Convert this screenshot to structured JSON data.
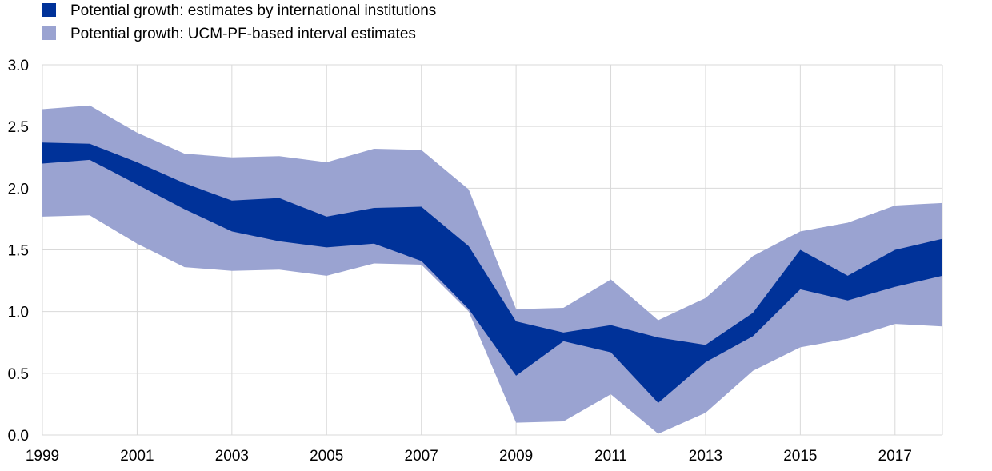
{
  "chart_data": {
    "type": "area",
    "x": [
      1999,
      2000,
      2001,
      2002,
      2003,
      2004,
      2005,
      2006,
      2007,
      2008,
      2009,
      2010,
      2011,
      2012,
      2013,
      2014,
      2015,
      2016,
      2017,
      2018
    ],
    "xticks": [
      "1999",
      "2001",
      "2003",
      "2005",
      "2007",
      "2009",
      "2011",
      "2013",
      "2015",
      "2017"
    ],
    "yticks": [
      "0.0",
      "0.5",
      "1.0",
      "1.5",
      "2.0",
      "2.5",
      "3.0"
    ],
    "ylim": [
      0,
      3
    ],
    "xlim": [
      1999,
      2018
    ],
    "grid": true,
    "legend_position": "top-left",
    "series": [
      {
        "name": "Potential growth: UCM-PF-based interval estimates",
        "color": "#9aa3d1",
        "upper": [
          2.64,
          2.67,
          2.45,
          2.28,
          2.25,
          2.26,
          2.21,
          2.32,
          2.31,
          1.99,
          1.02,
          1.03,
          1.26,
          0.93,
          1.11,
          1.45,
          1.65,
          1.72,
          1.86,
          1.88
        ],
        "lower": [
          1.77,
          1.78,
          1.55,
          1.36,
          1.33,
          1.34,
          1.29,
          1.39,
          1.38,
          1.0,
          0.1,
          0.11,
          0.33,
          0.01,
          0.18,
          0.52,
          0.71,
          0.78,
          0.9,
          0.88
        ]
      },
      {
        "name": "Potential growth: estimates by international institutions",
        "color": "#003299",
        "upper": [
          2.37,
          2.36,
          2.21,
          2.04,
          1.9,
          1.92,
          1.77,
          1.84,
          1.85,
          1.53,
          0.92,
          0.83,
          0.89,
          0.79,
          0.73,
          0.99,
          1.5,
          1.29,
          1.5,
          1.59
        ],
        "lower": [
          2.2,
          2.23,
          2.03,
          1.83,
          1.65,
          1.57,
          1.52,
          1.55,
          1.41,
          1.02,
          0.48,
          0.76,
          0.67,
          0.26,
          0.59,
          0.8,
          1.18,
          1.09,
          1.2,
          1.29
        ]
      }
    ],
    "legend": [
      {
        "label": "Potential growth: estimates by international institutions",
        "color": "#003299"
      },
      {
        "label": "Potential growth: UCM-PF-based interval estimates",
        "color": "#9aa3d1"
      }
    ]
  }
}
